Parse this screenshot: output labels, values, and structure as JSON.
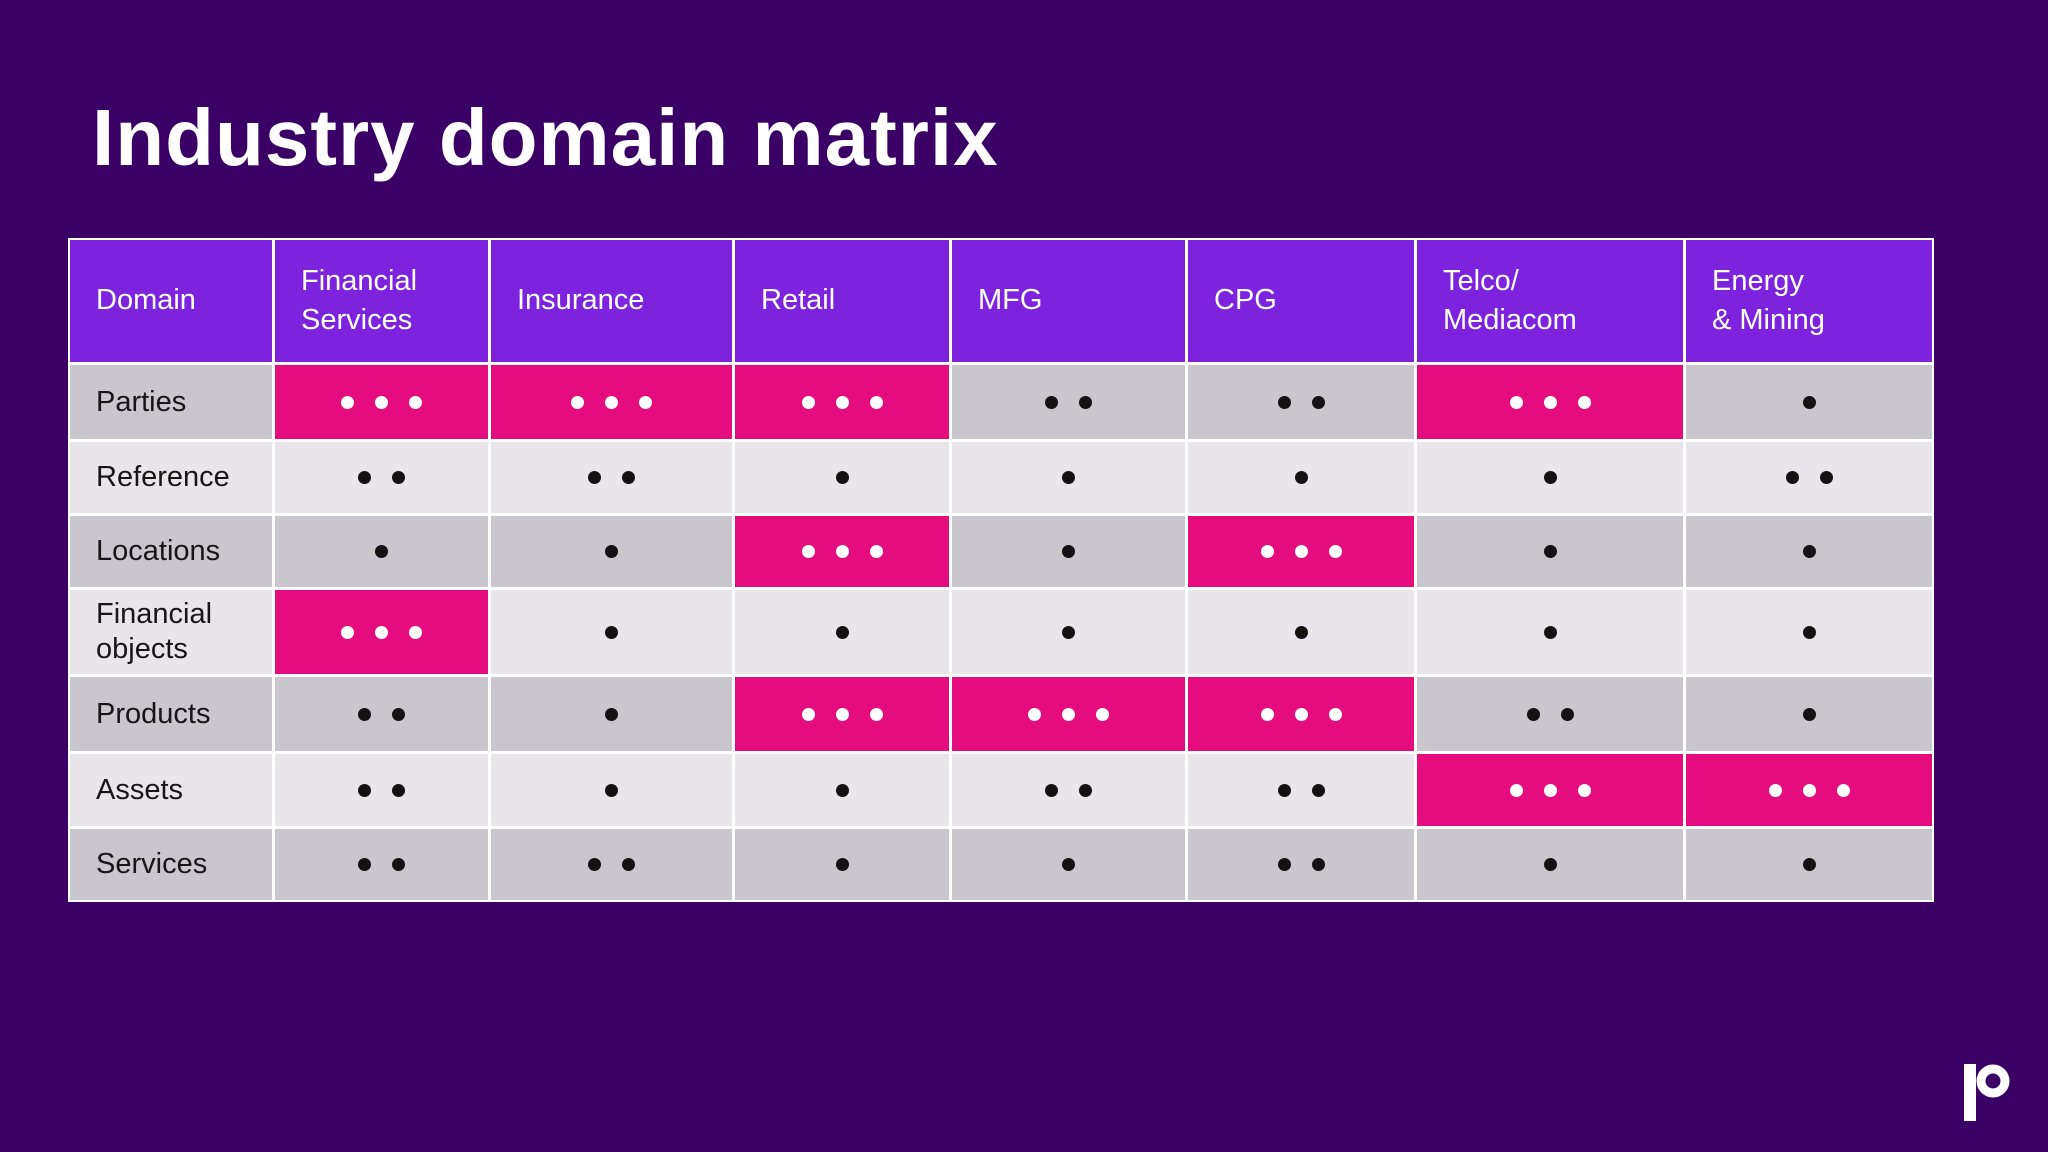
{
  "slide": {
    "title": "Industry domain matrix",
    "logo_icon": "p-ring-logo"
  },
  "colors": {
    "background": "#3a0066",
    "header_bg": "#7d22dd",
    "highlight_bg": "#e50c7e",
    "row_dark": "#c9c6ce",
    "row_light": "#e8e6ea",
    "dot_dark": "#121212",
    "dot_light": "#ffffff",
    "grid_line": "#ffffff",
    "title_text": "#ffffff"
  },
  "table": {
    "header": [
      "Domain",
      "Financial\nServices",
      "Insurance",
      "Retail",
      "MFG",
      "CPG",
      "Telco/\nMediacom",
      "Energy\n& Mining"
    ],
    "legend_note": "dots: 1-3 relevance, 3-dot cells highlighted",
    "rows": [
      {
        "label": "Parties",
        "cells": [
          {
            "dots": 3,
            "highlight": true
          },
          {
            "dots": 3,
            "highlight": true
          },
          {
            "dots": 3,
            "highlight": true
          },
          {
            "dots": 2,
            "highlight": false
          },
          {
            "dots": 2,
            "highlight": false
          },
          {
            "dots": 3,
            "highlight": true
          },
          {
            "dots": 1,
            "highlight": false
          }
        ]
      },
      {
        "label": "Reference",
        "cells": [
          {
            "dots": 2,
            "highlight": false
          },
          {
            "dots": 2,
            "highlight": false
          },
          {
            "dots": 1,
            "highlight": false
          },
          {
            "dots": 1,
            "highlight": false
          },
          {
            "dots": 1,
            "highlight": false
          },
          {
            "dots": 1,
            "highlight": false
          },
          {
            "dots": 2,
            "highlight": false
          }
        ]
      },
      {
        "label": "Locations",
        "cells": [
          {
            "dots": 1,
            "highlight": false
          },
          {
            "dots": 1,
            "highlight": false
          },
          {
            "dots": 3,
            "highlight": true
          },
          {
            "dots": 1,
            "highlight": false
          },
          {
            "dots": 3,
            "highlight": true
          },
          {
            "dots": 1,
            "highlight": false
          },
          {
            "dots": 1,
            "highlight": false
          }
        ]
      },
      {
        "label": "Financial\nobjects",
        "cells": [
          {
            "dots": 3,
            "highlight": true
          },
          {
            "dots": 1,
            "highlight": false
          },
          {
            "dots": 1,
            "highlight": false
          },
          {
            "dots": 1,
            "highlight": false
          },
          {
            "dots": 1,
            "highlight": false
          },
          {
            "dots": 1,
            "highlight": false
          },
          {
            "dots": 1,
            "highlight": false
          }
        ]
      },
      {
        "label": "Products",
        "cells": [
          {
            "dots": 2,
            "highlight": false
          },
          {
            "dots": 1,
            "highlight": false
          },
          {
            "dots": 3,
            "highlight": true
          },
          {
            "dots": 3,
            "highlight": true
          },
          {
            "dots": 3,
            "highlight": true
          },
          {
            "dots": 2,
            "highlight": false
          },
          {
            "dots": 1,
            "highlight": false
          }
        ]
      },
      {
        "label": "Assets",
        "cells": [
          {
            "dots": 2,
            "highlight": false
          },
          {
            "dots": 1,
            "highlight": false
          },
          {
            "dots": 1,
            "highlight": false
          },
          {
            "dots": 2,
            "highlight": false
          },
          {
            "dots": 2,
            "highlight": false
          },
          {
            "dots": 3,
            "highlight": true
          },
          {
            "dots": 3,
            "highlight": true
          }
        ]
      },
      {
        "label": "Services",
        "cells": [
          {
            "dots": 2,
            "highlight": false
          },
          {
            "dots": 2,
            "highlight": false
          },
          {
            "dots": 1,
            "highlight": false
          },
          {
            "dots": 1,
            "highlight": false
          },
          {
            "dots": 2,
            "highlight": false
          },
          {
            "dots": 1,
            "highlight": false
          },
          {
            "dots": 1,
            "highlight": false
          }
        ]
      }
    ]
  }
}
